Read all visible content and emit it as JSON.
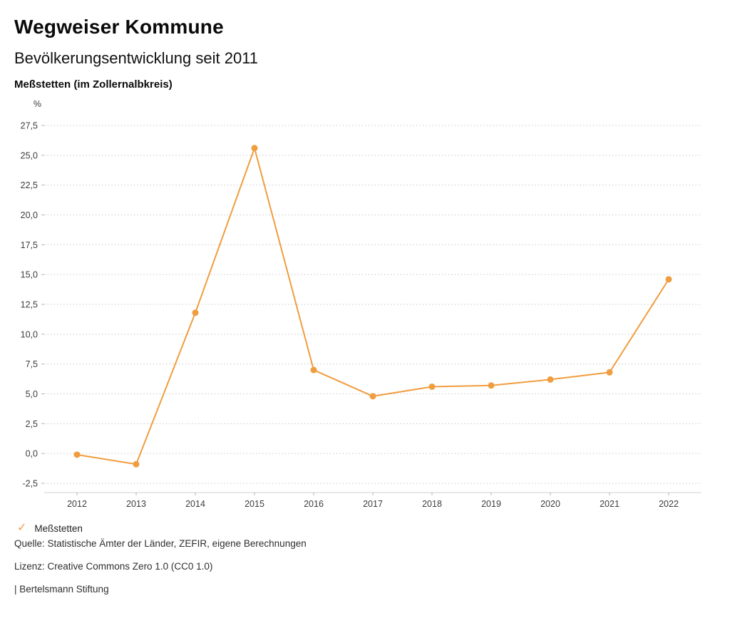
{
  "header": {
    "title": "Wegweiser Kommune",
    "subtitle": "Bevölkerungsentwicklung seit 2011",
    "location": "Meßstetten (im Zollernalbkreis)"
  },
  "chart_data": {
    "type": "line",
    "title": "Bevölkerungsentwicklung seit 2011",
    "subtitle": "Meßstetten (im Zollernalbkreis)",
    "unit_label": "%",
    "categories": [
      "2012",
      "2013",
      "2014",
      "2015",
      "2016",
      "2017",
      "2018",
      "2019",
      "2020",
      "2021",
      "2022"
    ],
    "series": [
      {
        "name": "Meßstetten",
        "values": [
          -0.1,
          -0.9,
          11.8,
          25.6,
          7.0,
          4.8,
          5.6,
          5.7,
          6.2,
          6.8,
          14.6
        ],
        "color": "#f09d3f"
      }
    ],
    "ylim": [
      -2.5,
      27.5
    ],
    "ytick_step": 2.5,
    "ytick_labels": [
      "27,5",
      "25,0",
      "22,5",
      "20,0",
      "17,5",
      "15,0",
      "12,5",
      "10,0",
      "7,5",
      "5,0",
      "2,5",
      "0,0",
      "-2,5"
    ],
    "grid": true,
    "legend_position": "bottom-left"
  },
  "legend": {
    "items": [
      {
        "label": "Meßstetten",
        "color": "#f09d3f",
        "icon": "check"
      }
    ]
  },
  "footer": {
    "source": "Quelle: Statistische Ämter der Länder, ZEFIR, eigene Berechnungen",
    "license": "Lizenz: Creative Commons Zero 1.0 (CC0 1.0)",
    "attribution": "| Bertelsmann Stiftung"
  }
}
